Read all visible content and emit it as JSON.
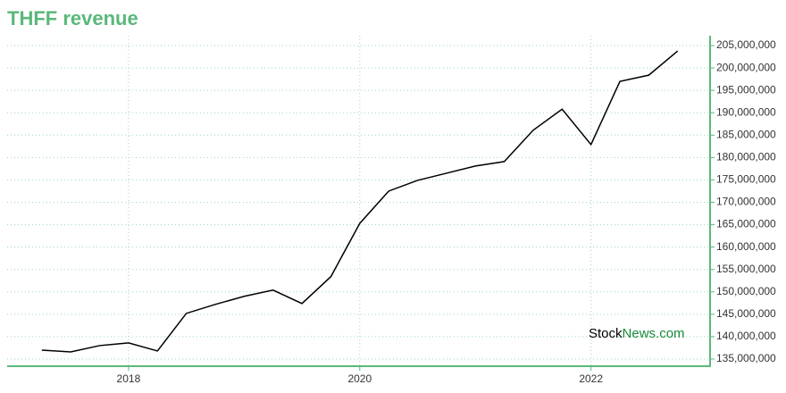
{
  "chart_data": {
    "type": "line",
    "title": "THFF revenue",
    "x": [
      2017.25,
      2017.5,
      2017.75,
      2018.0,
      2018.25,
      2018.5,
      2018.75,
      2019.0,
      2019.25,
      2019.5,
      2019.75,
      2020.0,
      2020.25,
      2020.5,
      2020.75,
      2021.0,
      2021.25,
      2021.5,
      2021.75,
      2022.0,
      2022.25,
      2022.5,
      2022.75
    ],
    "series": [
      {
        "name": "THFF revenue",
        "color": "#000000",
        "values": [
          137000000,
          136600000,
          138000000,
          138600000,
          136800000,
          145200000,
          147200000,
          149000000,
          150400000,
          147400000,
          153400000,
          165300000,
          172500000,
          174900000,
          176500000,
          178100000,
          179100000,
          186100000,
          190800000,
          182900000,
          197000000,
          198400000,
          203800000
        ]
      }
    ],
    "xlim": [
      2016.95,
      2023.03
    ],
    "xticks": [
      2018,
      2020,
      2022
    ],
    "ylim": [
      133400000,
      207200000
    ],
    "yticks": [
      {
        "value": 135000000,
        "label": "135,000,000"
      },
      {
        "value": 140000000,
        "label": "140,000,000"
      },
      {
        "value": 145000000,
        "label": "145,000,000"
      },
      {
        "value": 150000000,
        "label": "150,000,000"
      },
      {
        "value": 155000000,
        "label": "155,000,000"
      },
      {
        "value": 160000000,
        "label": "160,000,000"
      },
      {
        "value": 165000000,
        "label": "165,000,000"
      },
      {
        "value": 170000000,
        "label": "170,000,000"
      },
      {
        "value": 175000000,
        "label": "175,000,000"
      },
      {
        "value": 180000000,
        "label": "180,000,000"
      },
      {
        "value": 185000000,
        "label": "185,000,000"
      },
      {
        "value": 190000000,
        "label": "190,000,000"
      },
      {
        "value": 195000000,
        "label": "195,000,000"
      },
      {
        "value": 200000000,
        "label": "200,000,000"
      },
      {
        "value": 205000000,
        "label": "205,000,000"
      }
    ],
    "grid": true,
    "watermark": {
      "brand": "Stock",
      "suffix": "News.com"
    }
  }
}
